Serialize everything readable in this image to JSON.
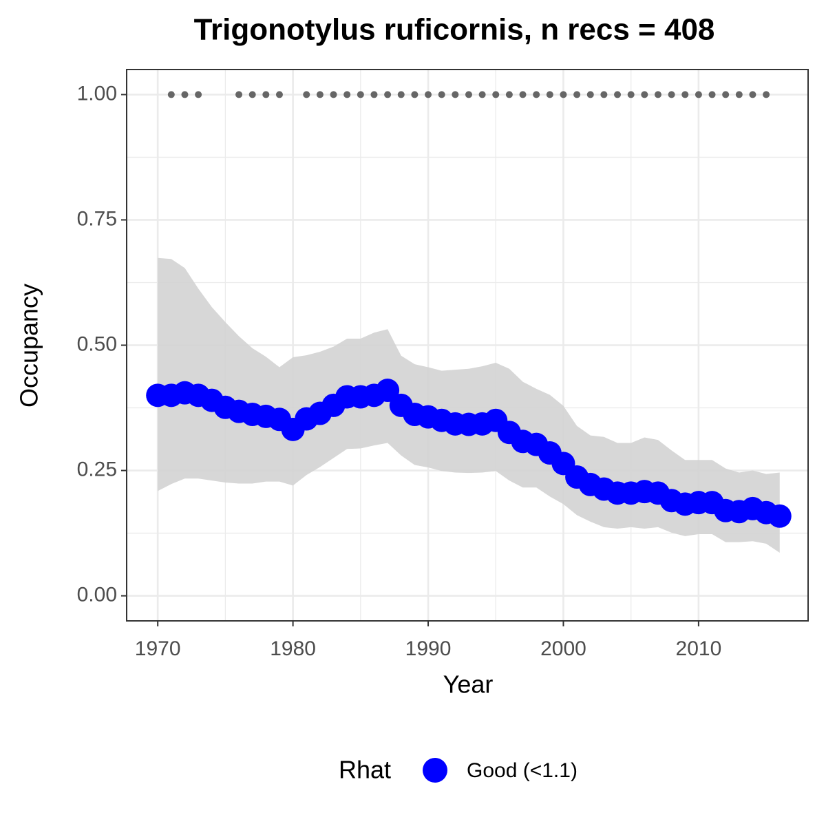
{
  "chart_data": {
    "type": "line",
    "title": "Trigonotylus ruficornis, n recs = 408",
    "x_label": "Year",
    "y_label": "Occupancy",
    "x": [
      1970,
      1971,
      1972,
      1973,
      1974,
      1975,
      1976,
      1977,
      1978,
      1979,
      1980,
      1981,
      1982,
      1983,
      1984,
      1985,
      1986,
      1987,
      1988,
      1989,
      1990,
      1991,
      1992,
      1993,
      1994,
      1995,
      1996,
      1997,
      1998,
      1999,
      2000,
      2001,
      2002,
      2003,
      2004,
      2005,
      2006,
      2007,
      2008,
      2009,
      2010,
      2011,
      2012,
      2013,
      2014,
      2015,
      2016
    ],
    "series": [
      {
        "name": "Good (<1.1)",
        "color": "#0000ff",
        "values": [
          0.4,
          0.4,
          0.405,
          0.4,
          0.39,
          0.376,
          0.368,
          0.362,
          0.358,
          0.352,
          0.332,
          0.353,
          0.364,
          0.38,
          0.397,
          0.397,
          0.4,
          0.41,
          0.38,
          0.362,
          0.357,
          0.35,
          0.343,
          0.342,
          0.343,
          0.35,
          0.326,
          0.308,
          0.302,
          0.285,
          0.264,
          0.237,
          0.222,
          0.213,
          0.205,
          0.205,
          0.208,
          0.205,
          0.19,
          0.183,
          0.186,
          0.186,
          0.17,
          0.168,
          0.174,
          0.166,
          0.159
        ],
        "upper": [
          0.674,
          0.672,
          0.654,
          0.613,
          0.576,
          0.546,
          0.518,
          0.494,
          0.477,
          0.456,
          0.476,
          0.48,
          0.487,
          0.497,
          0.513,
          0.513,
          0.525,
          0.532,
          0.479,
          0.462,
          0.456,
          0.449,
          0.451,
          0.453,
          0.458,
          0.465,
          0.453,
          0.427,
          0.413,
          0.401,
          0.379,
          0.339,
          0.32,
          0.317,
          0.305,
          0.305,
          0.316,
          0.311,
          0.29,
          0.271,
          0.271,
          0.271,
          0.254,
          0.246,
          0.25,
          0.243,
          0.246
        ],
        "lower": [
          0.209,
          0.223,
          0.234,
          0.234,
          0.23,
          0.226,
          0.224,
          0.224,
          0.228,
          0.228,
          0.22,
          0.241,
          0.257,
          0.275,
          0.293,
          0.294,
          0.3,
          0.305,
          0.28,
          0.261,
          0.256,
          0.249,
          0.246,
          0.245,
          0.246,
          0.249,
          0.23,
          0.216,
          0.216,
          0.198,
          0.183,
          0.161,
          0.148,
          0.137,
          0.134,
          0.137,
          0.134,
          0.137,
          0.126,
          0.119,
          0.123,
          0.123,
          0.107,
          0.107,
          0.109,
          0.104,
          0.086
        ]
      }
    ],
    "band_color": "#d3d3d3",
    "records": {
      "x": [
        1971,
        1972,
        1973,
        1976,
        1977,
        1978,
        1979,
        1981,
        1982,
        1983,
        1984,
        1985,
        1986,
        1987,
        1988,
        1989,
        1990,
        1991,
        1992,
        1993,
        1994,
        1995,
        1996,
        1997,
        1998,
        1999,
        2000,
        2001,
        2002,
        2003,
        2004,
        2005,
        2006,
        2007,
        2008,
        2009,
        2010,
        2011,
        2012,
        2013,
        2014,
        2015
      ],
      "y": [
        1,
        1,
        1,
        1,
        1,
        1,
        1,
        1,
        1,
        1,
        1,
        1,
        1,
        1,
        1,
        1,
        1,
        1,
        1,
        1,
        1,
        1,
        1,
        1,
        1,
        1,
        1,
        1,
        1,
        1,
        1,
        1,
        1,
        1,
        1,
        1,
        1,
        1,
        1,
        1,
        1,
        1
      ],
      "color": "#666666"
    },
    "xlim": [
      1967.7,
      2018.1
    ],
    "ylim": [
      -0.05,
      1.05
    ],
    "xticks": [
      1970,
      1980,
      1990,
      2000,
      2010
    ],
    "yticks": [
      {
        "value": 0,
        "label": "0.00"
      },
      {
        "value": 0.25,
        "label": "0.25"
      },
      {
        "value": 0.5,
        "label": "0.50"
      },
      {
        "value": 0.75,
        "label": "0.75"
      },
      {
        "value": 1,
        "label": "1.00"
      }
    ],
    "grid": true,
    "minor_grid": true,
    "legend_title": "Rhat",
    "legend_position": "bottom"
  }
}
